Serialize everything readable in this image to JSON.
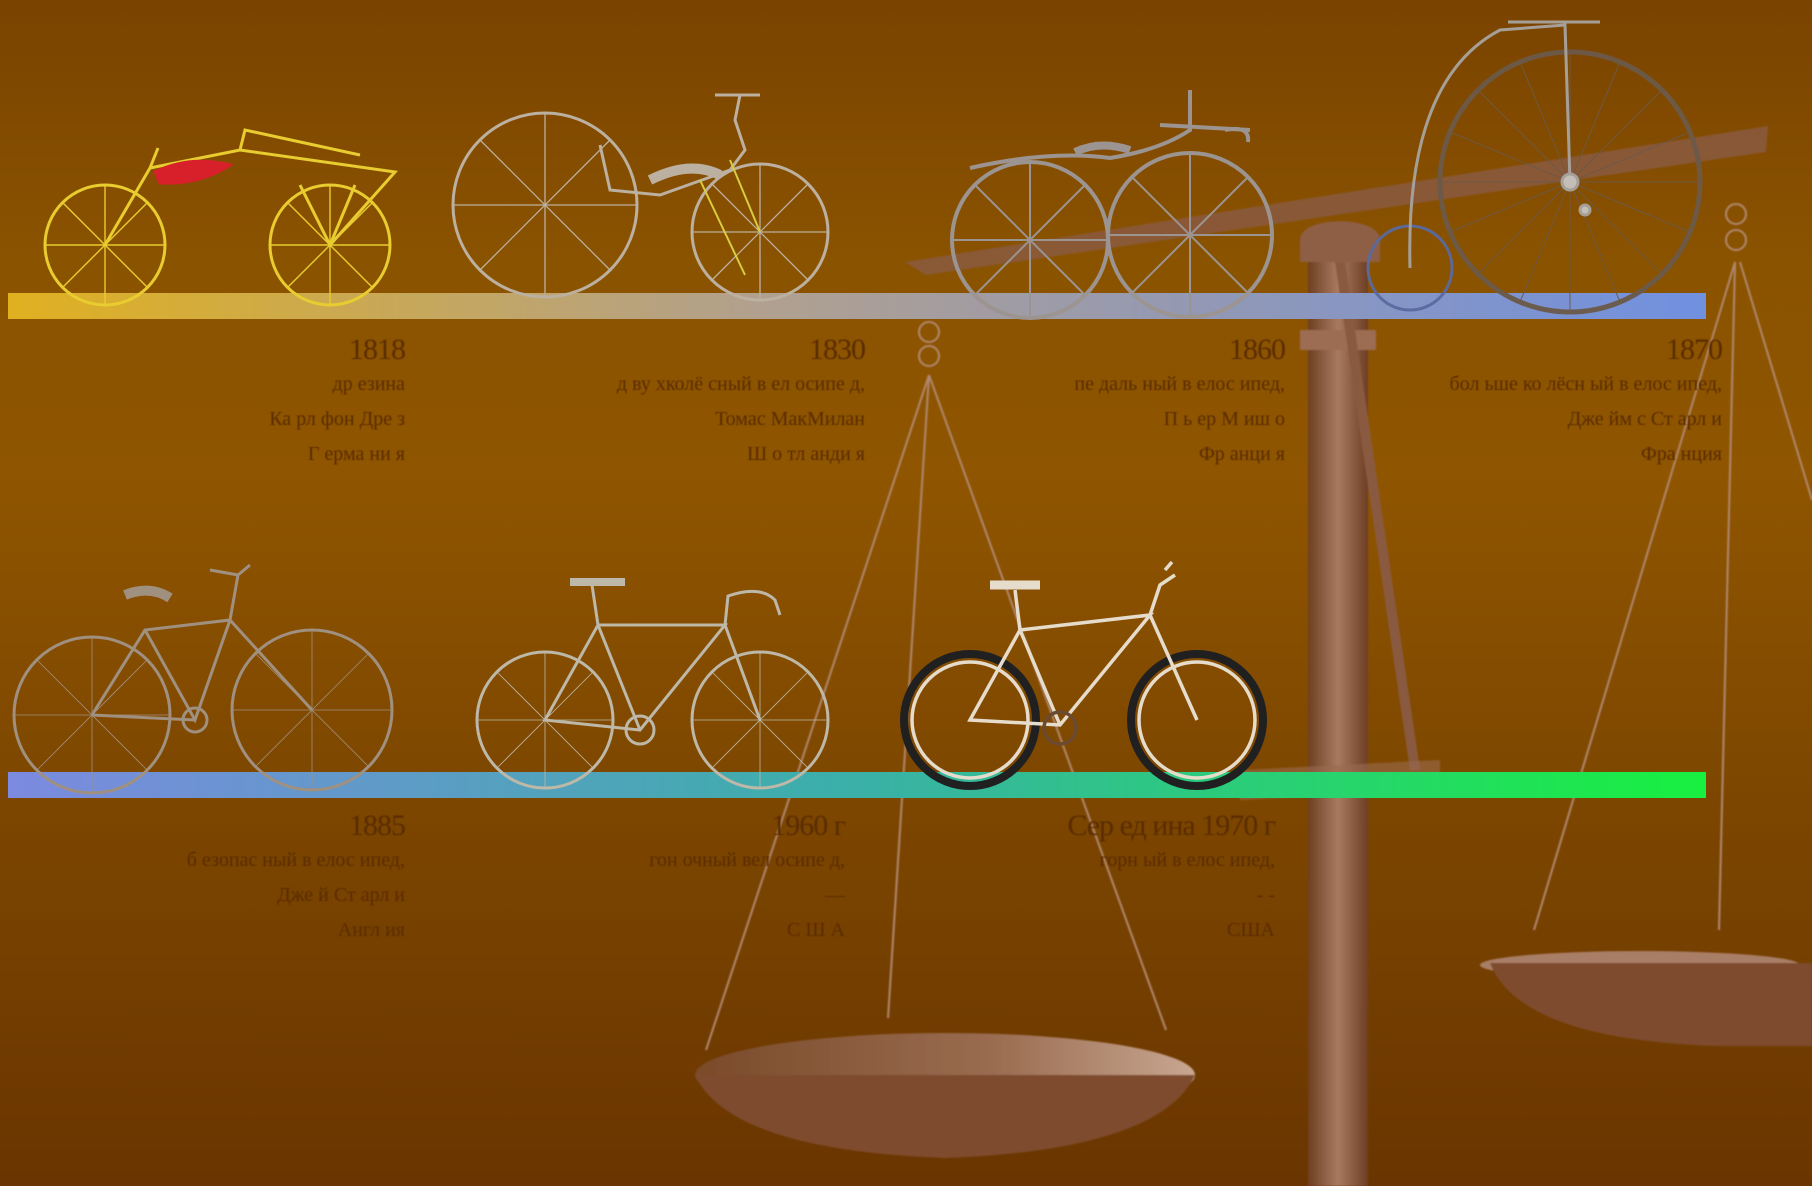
{
  "colors": {
    "background_top": "#7a4300",
    "background_bottom": "#6a3500",
    "row1_bar": [
      "#e0b020",
      "#b0a090",
      "#7090e0"
    ],
    "row2_bar": [
      "#7c8ae0",
      "#3ab0a8",
      "#18f040"
    ],
    "caption_text": "#5a2c00",
    "scale": "#8a5a40"
  },
  "bicycles": [
    {
      "id": "hobby-horse",
      "year": "1818",
      "lines": [
        "др езина",
        "Ка рл фон  Дре з",
        "Г ерма ни я"
      ],
      "icon": "draisine-icon"
    },
    {
      "id": "macmillan",
      "year": "1830",
      "lines": [
        "д ву хколё сный в ел осипе д,",
        "Томас  МакМилан",
        "Ш о тл анди я"
      ],
      "icon": "rear-drive-velocipede-icon"
    },
    {
      "id": "michaux",
      "year": "1860",
      "lines": [
        "пе даль ный в елос ипед,",
        "П ь ер М иш о",
        "Фр анци я"
      ],
      "icon": "pedal-velocipede-icon"
    },
    {
      "id": "penny-farthing",
      "year": "1870",
      "lines": [
        "бол ьше ко лёсн ый  в елос ипед,",
        "Дже йм с  Ст арл и",
        "Фра нция"
      ],
      "icon": "penny-farthing-icon"
    },
    {
      "id": "safety",
      "year": "1885",
      "lines": [
        "б езопас ный  в елос ипед,",
        "Дже й Ст арл и",
        "Англ ия"
      ],
      "icon": "safety-bicycle-icon"
    },
    {
      "id": "racing",
      "year": "1960 г",
      "lines": [
        "гон очный  вел осипе д,",
        "—",
        "С Ш А"
      ],
      "icon": "road-bike-icon"
    },
    {
      "id": "mountain",
      "year": "Сер ед ина  1970 г",
      "lines": [
        "горн ый  в елос ипед,",
        "- -",
        "США"
      ],
      "icon": "mountain-bike-icon"
    }
  ]
}
